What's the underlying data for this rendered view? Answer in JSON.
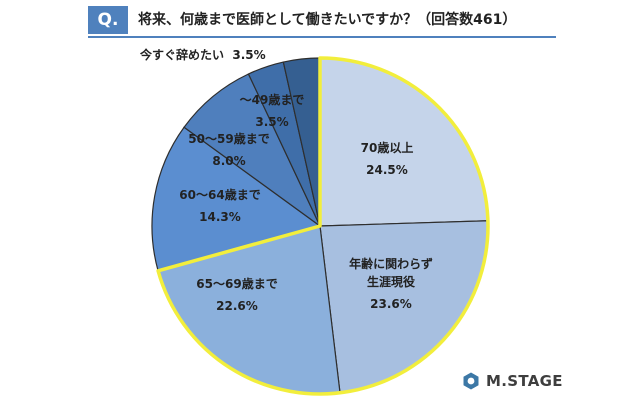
{
  "header": {
    "badge": "Q.",
    "question": "将来、何歳まで医師として働きたいですか？（回答数461）"
  },
  "chart_data": {
    "type": "pie",
    "title": "将来、何歳まで医師として働きたいですか？（回答数461）",
    "slices": [
      {
        "label": [
          "70歳以上"
        ],
        "value": 24.5,
        "value_label": "24.5%",
        "color": "#c5d4ea"
      },
      {
        "label": [
          "年齢に関わらず",
          "生涯現役"
        ],
        "value": 23.6,
        "value_label": "23.6%",
        "color": "#a7bfe0"
      },
      {
        "label": [
          "65～69歳まで"
        ],
        "value": 22.6,
        "value_label": "22.6%",
        "color": "#8bb0dc"
      },
      {
        "label": [
          "60～64歳まで"
        ],
        "value": 14.3,
        "value_label": "14.3%",
        "color": "#5b8ed0"
      },
      {
        "label": [
          "50～59歳まで"
        ],
        "value": 8.0,
        "value_label": "8.0%",
        "color": "#4f7fbd"
      },
      {
        "label": [
          "～49歳まで"
        ],
        "value": 3.5,
        "value_label": "3.5%",
        "color": "#3f6ea9"
      },
      {
        "label": [
          "今すぐ辞めたい"
        ],
        "value": 3.5,
        "value_label": "3.5%",
        "color": "#355f91"
      }
    ],
    "highlight_color": "#f2ee3c",
    "highlighted_slices": [
      0,
      1,
      2
    ]
  },
  "brand": {
    "name": "M.STAGE",
    "color": "#3c78a6"
  }
}
